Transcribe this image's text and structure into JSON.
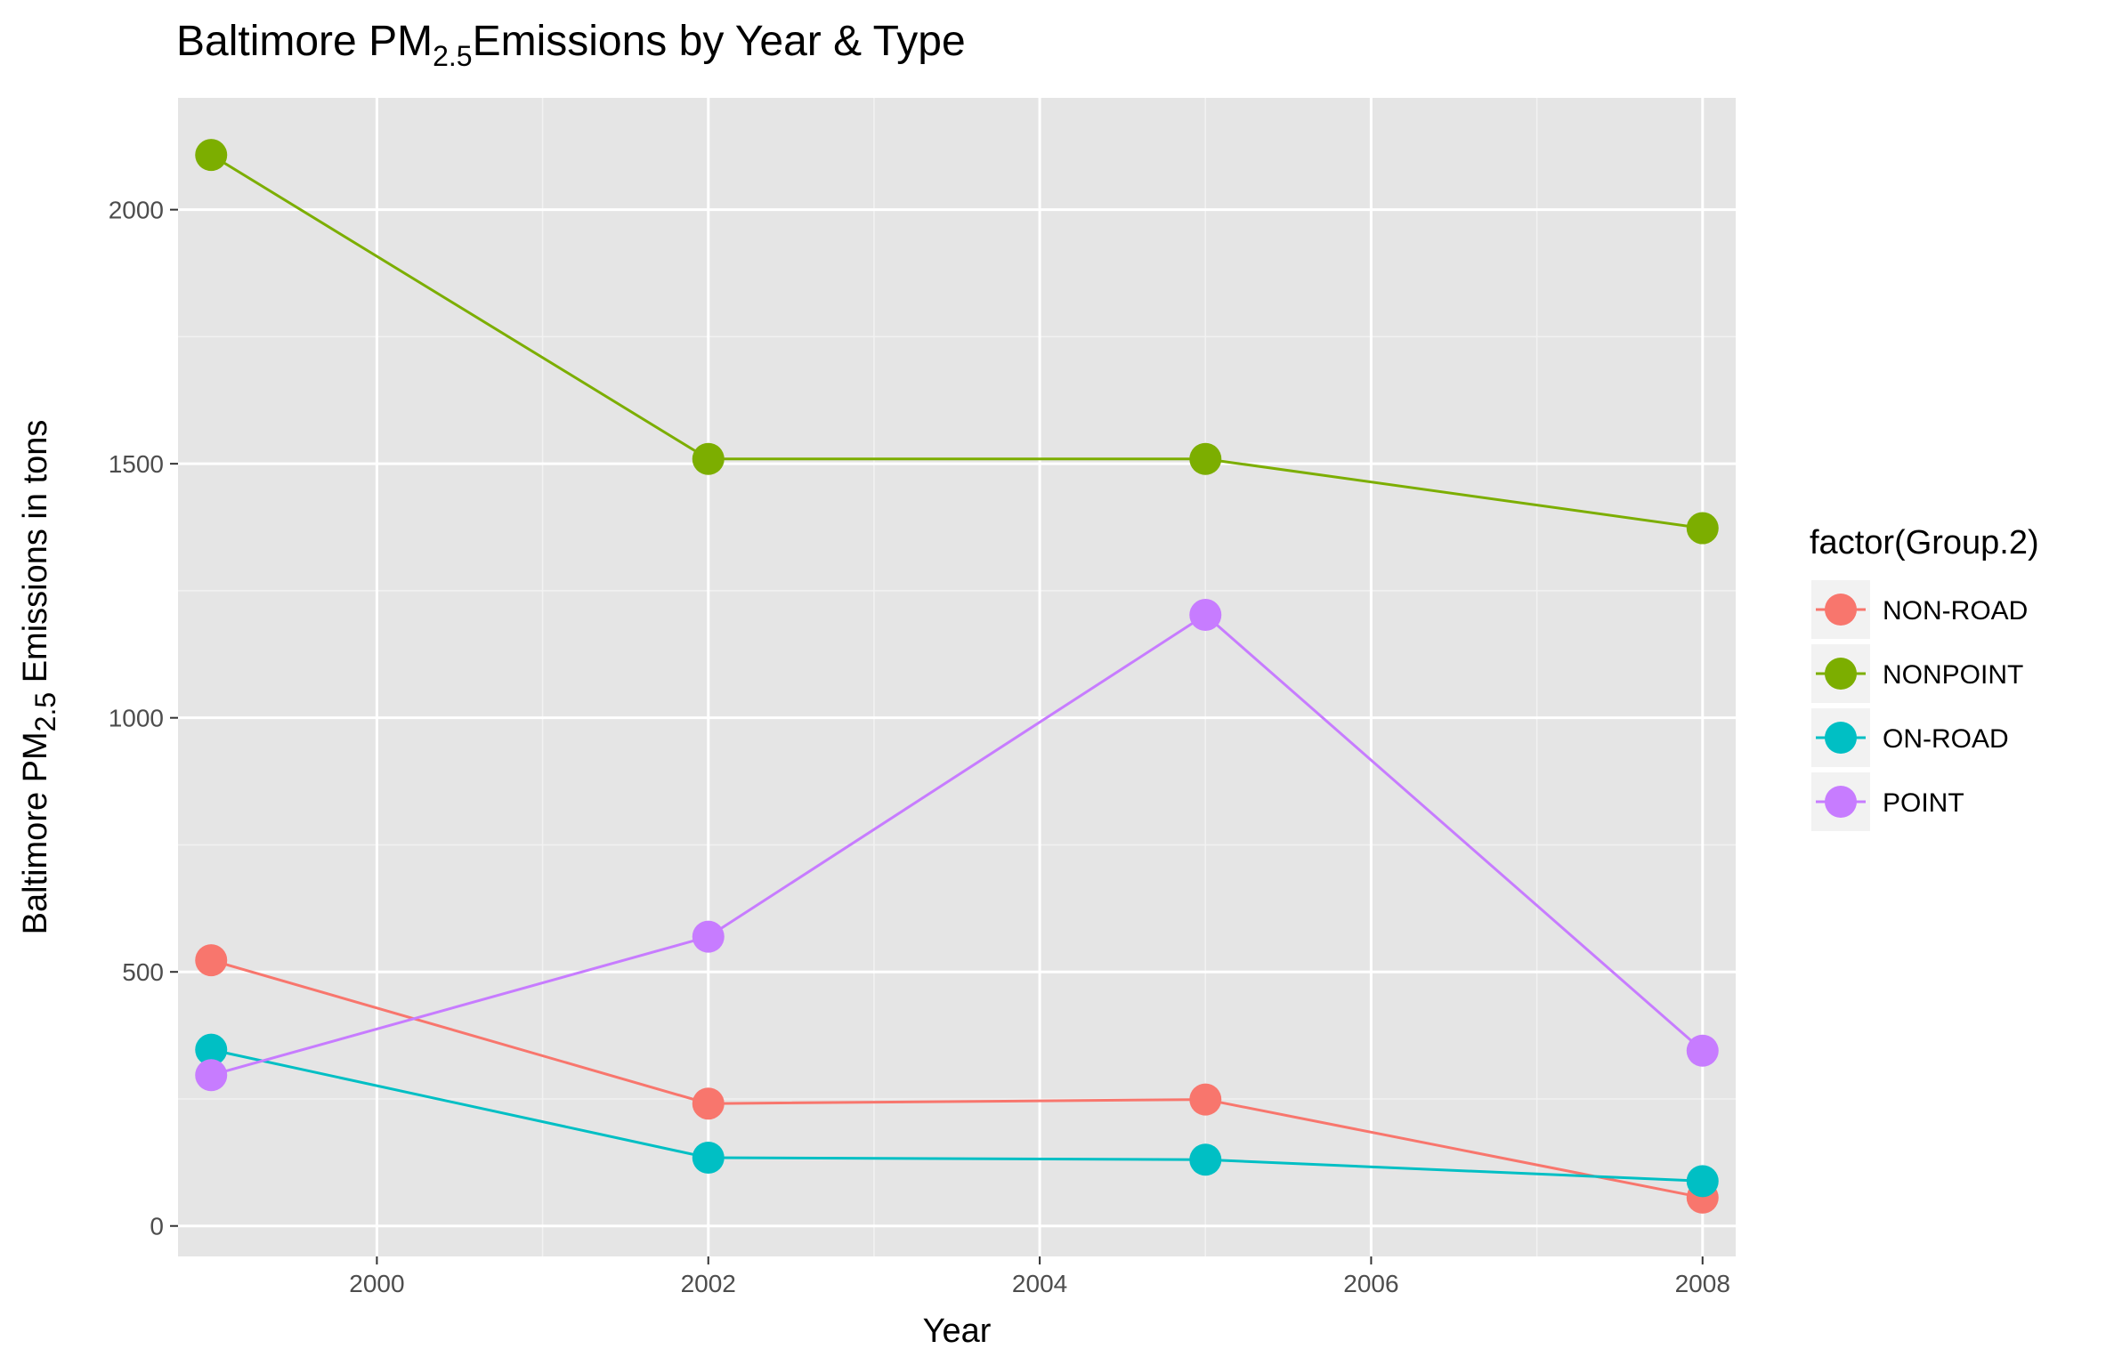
{
  "chart_data": {
    "type": "line",
    "title_prefix": "Baltimore PM",
    "title_subscript": "2.5",
    "title_suffix": "Emissions by Year & Type",
    "xlabel": "Year",
    "ylabel_prefix": "Baltimore PM",
    "ylabel_subscript": "2.5",
    "ylabel_suffix": " Emissions in tons",
    "xlim": [
      1998.8,
      2008.2
    ],
    "ylim": [
      -60,
      2220
    ],
    "x_ticks": [
      2000,
      2002,
      2004,
      2006,
      2008
    ],
    "y_ticks": [
      0,
      500,
      1000,
      1500,
      2000
    ],
    "grid": true,
    "legend_title": "factor(Group.2)",
    "legend_position": "right",
    "x": [
      1999,
      2002,
      2005,
      2008
    ],
    "series": [
      {
        "name": "NON-ROAD",
        "color": "#F8766D",
        "values": [
          522.94,
          240.85,
          248.93,
          55.82
        ]
      },
      {
        "name": "NONPOINT",
        "color": "#7CAE00",
        "values": [
          2107.63,
          1509.5,
          1509.5,
          1373.21
        ]
      },
      {
        "name": "ON-ROAD",
        "color": "#00BFC4",
        "values": [
          346.82,
          134.31,
          130.43,
          88.28
        ]
      },
      {
        "name": "POINT",
        "color": "#C77CFF",
        "values": [
          296.8,
          569.26,
          1202.49,
          344.98
        ]
      }
    ]
  }
}
